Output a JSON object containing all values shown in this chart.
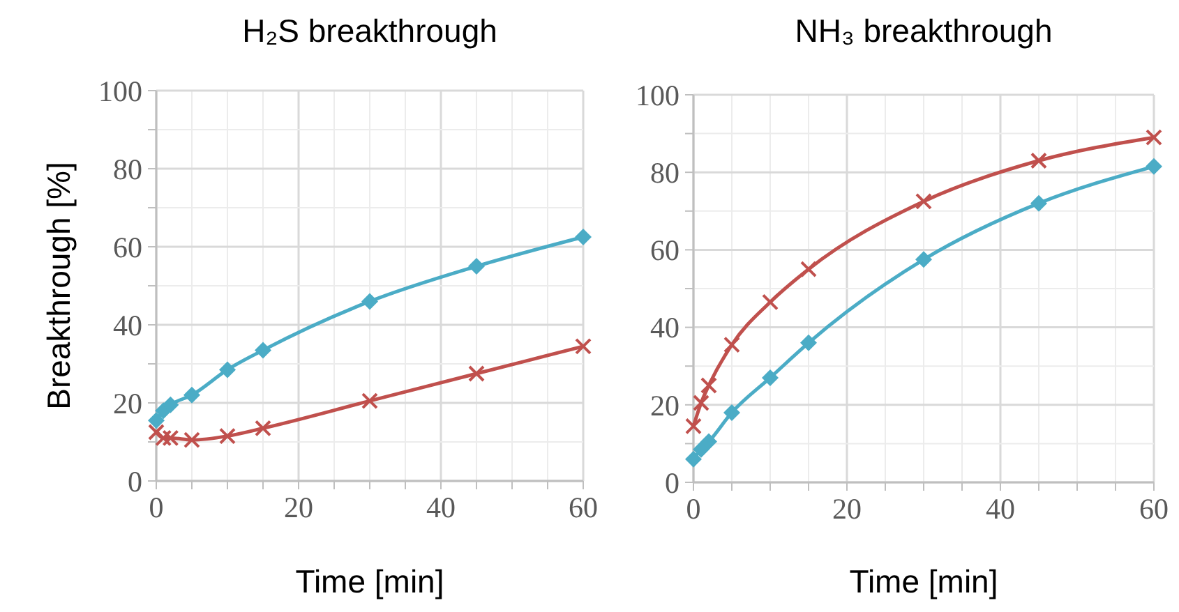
{
  "chart_data": [
    {
      "type": "line",
      "title": "H₂S breakthrough",
      "xlabel": "Time [min]",
      "ylabel": "Breakthrough [%]",
      "x": [
        0,
        1,
        2,
        5,
        10,
        15,
        30,
        45,
        60
      ],
      "xlim": [
        0,
        60
      ],
      "xticks": [
        0,
        {
          "value": 5,
          "label": null
        },
        {
          "value": 10,
          "label": null
        },
        {
          "value": 15,
          "label": null
        },
        20,
        {
          "value": 25,
          "label": null
        },
        {
          "value": 30,
          "label": null
        },
        {
          "value": 35,
          "label": null
        },
        40,
        {
          "value": 45,
          "label": null
        },
        {
          "value": 50,
          "label": null
        },
        {
          "value": 55,
          "label": null
        },
        60
      ],
      "ylim": [
        0,
        100
      ],
      "yticks": [
        0,
        {
          "value": 10,
          "label": null
        },
        20,
        {
          "value": 30,
          "label": null
        },
        40,
        {
          "value": 50,
          "label": null
        },
        60,
        {
          "value": 70,
          "label": null
        },
        80,
        {
          "value": 90,
          "label": null
        },
        100
      ],
      "grid": true,
      "line_style": "solid",
      "series": [
        {
          "color": "#4bacc6",
          "marker": "diamond",
          "values": [
            15.5,
            18,
            19.5,
            22,
            28.5,
            33.5,
            46,
            55,
            62.5
          ]
        },
        {
          "color": "#c0504d",
          "marker": "cross",
          "values": [
            12.5,
            11,
            11,
            10.5,
            11.5,
            13.5,
            20.5,
            27.5,
            34.5
          ]
        }
      ]
    },
    {
      "type": "line",
      "title": "NH₃ breakthrough",
      "xlabel": "Time [min]",
      "x": [
        0,
        1,
        2,
        5,
        10,
        15,
        30,
        45,
        60
      ],
      "xlim": [
        0,
        60
      ],
      "xticks": [
        0,
        {
          "value": 5,
          "label": null
        },
        {
          "value": 10,
          "label": null
        },
        {
          "value": 15,
          "label": null
        },
        20,
        {
          "value": 25,
          "label": null
        },
        {
          "value": 30,
          "label": null
        },
        {
          "value": 35,
          "label": null
        },
        40,
        {
          "value": 45,
          "label": null
        },
        {
          "value": 50,
          "label": null
        },
        {
          "value": 55,
          "label": null
        },
        60
      ],
      "ylim": [
        0,
        100
      ],
      "yticks": [
        0,
        {
          "value": 10,
          "label": null
        },
        20,
        {
          "value": 30,
          "label": null
        },
        40,
        {
          "value": 50,
          "label": null
        },
        60,
        {
          "value": 70,
          "label": null
        },
        80,
        {
          "value": 90,
          "label": null
        },
        100
      ],
      "grid": true,
      "line_style": "solid",
      "series": [
        {
          "color": "#c0504d",
          "marker": "cross",
          "values": [
            14.5,
            20.5,
            25,
            35.5,
            46.5,
            55,
            72.5,
            83,
            89
          ]
        },
        {
          "color": "#4bacc6",
          "marker": "diamond",
          "values": [
            6,
            8.5,
            10.5,
            18,
            27,
            36,
            57.5,
            72,
            81.5
          ]
        }
      ]
    }
  ]
}
